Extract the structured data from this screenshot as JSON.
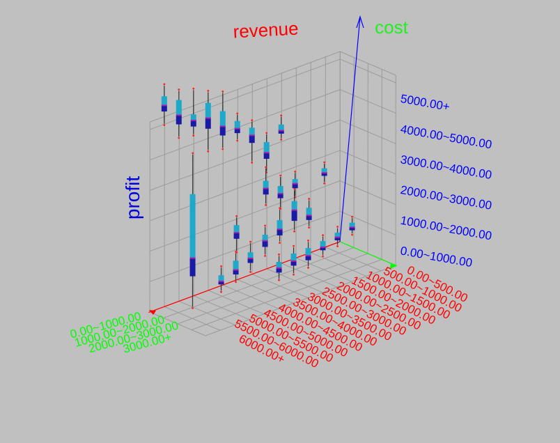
{
  "chart_data": {
    "type": "box",
    "title": "",
    "axes": {
      "x": {
        "label": "revenue",
        "ticks": [
          "0.00~500.00",
          "500.00~1000.00",
          "1000.00~1500.00",
          "1500.00~2000.00",
          "2000.00~2500.00",
          "2500.00~3000.00",
          "3000.00~3500.00",
          "3500.00~4000.00",
          "4000.00~4500.00",
          "4500.00~5000.00",
          "5000.00~5500.00",
          "5500.00~6000.00",
          "6000.00+"
        ]
      },
      "z": {
        "label": "cost",
        "ticks": [
          "0.00~1000.00",
          "1000.00~2000.00",
          "2000.00~3000.00",
          "3000.00+"
        ]
      },
      "y": {
        "label": "profit",
        "ticks": [
          "0.00~1000.00",
          "1000.00~2000.00",
          "2000.00~3000.00",
          "3000.00~4000.00",
          "4000.00~5000.00",
          "5000.00+"
        ]
      }
    },
    "grid": true,
    "colors": {
      "background": "#c0c0c0",
      "grid": "#9a9a9a",
      "revenue_axis": "#ff0000",
      "cost_axis": "#00ff00",
      "profit_axis": "#0000ff",
      "whisker": "#3a3a3a",
      "box_upper": "#1fa8c9",
      "box_lower": "#1a1aa6",
      "median": "#aa22aa",
      "outlier": "#ff2020"
    },
    "boxes": [
      {
        "revenue": "6000.00+",
        "cost": "0.00~1000.00",
        "min": 6.2,
        "q1": 6.6,
        "median": 6.8,
        "q3": 7.1,
        "max": 7.45
      },
      {
        "revenue": "5500.00~6000.00",
        "cost": "0.00~1000.00",
        "min": 5.6,
        "q1": 6.0,
        "median": 6.3,
        "q3": 6.8,
        "max": 7.1
      },
      {
        "revenue": "5000.00~5500.00",
        "cost": "0.00~1000.00",
        "min": 5.5,
        "q1": 5.75,
        "median": 5.95,
        "q3": 6.15,
        "max": 6.95
      },
      {
        "revenue": "4500.00~5000.00",
        "cost": "0.00~1000.00",
        "min": 4.8,
        "q1": 5.5,
        "median": 5.85,
        "q3": 6.35,
        "max": 6.7
      },
      {
        "revenue": "4000.00~4500.00",
        "cost": "0.00~1000.00",
        "min": 4.7,
        "q1": 5.1,
        "median": 5.4,
        "q3": 5.9,
        "max": 6.5
      },
      {
        "revenue": "3500.00~4000.00",
        "cost": "0.00~1000.00",
        "min": 4.8,
        "q1": 5.0,
        "median": 5.15,
        "q3": 5.4,
        "max": 5.6
      },
      {
        "revenue": "3000.00~3500.00",
        "cost": "0.00~1000.00",
        "min": 3.9,
        "q1": 4.5,
        "median": 4.75,
        "q3": 5.0,
        "max": 5.2
      },
      {
        "revenue": "2500.00~3000.00",
        "cost": "0.00~1000.00",
        "min": 3.4,
        "q1": 3.8,
        "median": 4.0,
        "q3": 4.35,
        "max": 4.6
      },
      {
        "revenue": "2000.00~2500.00",
        "cost": "0.00~1000.00",
        "min": 4.3,
        "q1": 4.45,
        "median": 4.55,
        "q3": 4.75,
        "max": 5.0
      },
      {
        "revenue": "5500.00~6000.00",
        "cost": "1000.00~2000.00",
        "min": 0.2,
        "q1": 1.2,
        "median": 1.8,
        "q3": 3.9,
        "max": 5.2
      },
      {
        "revenue": "4000.00~4500.00",
        "cost": "1000.00~2000.00",
        "min": 1.5,
        "q1": 1.9,
        "median": 2.1,
        "q3": 2.35,
        "max": 2.6
      },
      {
        "revenue": "3000.00~3500.00",
        "cost": "1000.00~2000.00",
        "min": 2.7,
        "q1": 3.0,
        "median": 3.2,
        "q3": 3.45,
        "max": 3.85
      },
      {
        "revenue": "2500.00~3000.00",
        "cost": "1000.00~2000.00",
        "min": 2.4,
        "q1": 2.7,
        "median": 2.85,
        "q3": 3.1,
        "max": 3.4
      },
      {
        "revenue": "2000.00~2500.00",
        "cost": "1000.00~2000.00",
        "min": 2.6,
        "q1": 2.85,
        "median": 3.0,
        "q3": 3.15,
        "max": 3.35
      },
      {
        "revenue": "1000.00~1500.00",
        "cost": "1000.00~2000.00",
        "min": 2.7,
        "q1": 2.9,
        "median": 3.0,
        "q3": 3.15,
        "max": 3.3
      },
      {
        "revenue": "5000.00~5500.00",
        "cost": "2000.00~3000.00",
        "min": 0.75,
        "q1": 0.95,
        "median": 1.05,
        "q3": 1.25,
        "max": 1.5
      },
      {
        "revenue": "4500.00~5000.00",
        "cost": "2000.00~3000.00",
        "min": 0.9,
        "q1": 1.1,
        "median": 1.25,
        "q3": 1.55,
        "max": 1.8
      },
      {
        "revenue": "4000.00~4500.00",
        "cost": "2000.00~3000.00",
        "min": 1.05,
        "q1": 1.3,
        "median": 1.45,
        "q3": 1.65,
        "max": 1.95
      },
      {
        "revenue": "3500.00~4000.00",
        "cost": "2000.00~3000.00",
        "min": 1.4,
        "q1": 1.65,
        "median": 1.85,
        "q3": 2.05,
        "max": 2.3
      },
      {
        "revenue": "3000.00~3500.00",
        "cost": "2000.00~3000.00",
        "min": 1.65,
        "q1": 1.85,
        "median": 2.05,
        "q3": 2.35,
        "max": 2.7
      },
      {
        "revenue": "2500.00~3000.00",
        "cost": "2000.00~3000.00",
        "min": 1.85,
        "q1": 2.15,
        "median": 2.5,
        "q3": 2.8,
        "max": 3.15
      },
      {
        "revenue": "2000.00~2500.00",
        "cost": "2000.00~3000.00",
        "min": 1.8,
        "q1": 2.0,
        "median": 2.15,
        "q3": 2.4,
        "max": 2.65
      },
      {
        "revenue": "3500.00~4000.00",
        "cost": "3000.00+",
        "min": 0.8,
        "q1": 1.0,
        "median": 1.15,
        "q3": 1.35,
        "max": 1.55
      },
      {
        "revenue": "3000.00~3500.00",
        "cost": "3000.00+",
        "min": 0.8,
        "q1": 1.05,
        "median": 1.2,
        "q3": 1.45,
        "max": 1.65
      },
      {
        "revenue": "2500.00~3000.00",
        "cost": "3000.00+",
        "min": 0.85,
        "q1": 1.05,
        "median": 1.2,
        "q3": 1.45,
        "max": 1.65
      },
      {
        "revenue": "2000.00~2500.00",
        "cost": "3000.00+",
        "min": 1.05,
        "q1": 1.2,
        "median": 1.3,
        "q3": 1.5,
        "max": 1.65
      },
      {
        "revenue": "1500.00~2000.00",
        "cost": "3000.00+",
        "min": 1.2,
        "q1": 1.35,
        "median": 1.45,
        "q3": 1.6,
        "max": 1.75
      },
      {
        "revenue": "1000.00~1500.00",
        "cost": "3000.00+",
        "min": 1.4,
        "q1": 1.5,
        "median": 1.6,
        "q3": 1.75,
        "max": 1.9
      }
    ]
  }
}
